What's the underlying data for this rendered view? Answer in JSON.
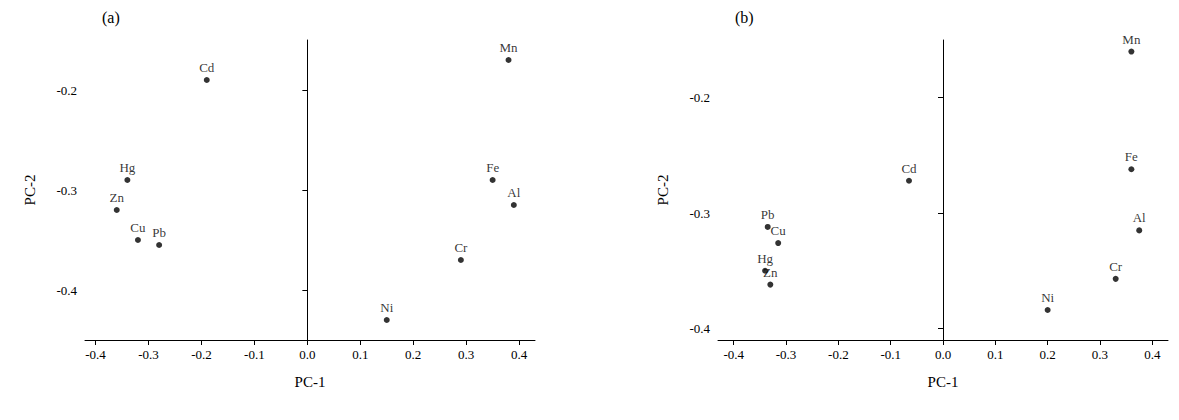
{
  "chart_data": [
    {
      "type": "scatter",
      "title": "(a)",
      "x_label": "PC-1",
      "y_label": "PC-2",
      "labels": [
        "Cd",
        "Mn",
        "Hg",
        "Zn",
        "Cu",
        "Pb",
        "Fe",
        "Al",
        "Cr",
        "Ni"
      ],
      "x": [
        -0.19,
        0.38,
        -0.34,
        -0.36,
        -0.32,
        -0.28,
        0.35,
        0.39,
        0.29,
        0.15
      ],
      "y": [
        -0.19,
        -0.17,
        -0.29,
        -0.32,
        -0.35,
        -0.355,
        -0.29,
        -0.315,
        -0.37,
        -0.43
      ],
      "color": "#000000",
      "marker": "circle",
      "grid": false,
      "xlim": [
        -0.42,
        0.43
      ],
      "xticks": [
        -0.4,
        -0.3,
        -0.2,
        -0.1,
        {
          "value": 0,
          "label": "0.0"
        },
        0.1,
        0.2,
        0.3,
        0.4
      ],
      "ylim": [
        -0.45,
        -0.15
      ],
      "yticks": [
        -0.4,
        -0.3,
        -0.2
      ]
    },
    {
      "type": "scatter",
      "title": "(b)",
      "x_label": "PC-1",
      "y_label": "PC-2",
      "labels": [
        "Mn",
        "Fe",
        "Al",
        "Cr",
        "Ni",
        "Cd",
        "Pb",
        "Cu",
        "Hg",
        "Zn"
      ],
      "x": [
        0.36,
        0.36,
        0.375,
        0.33,
        0.2,
        -0.065,
        -0.335,
        -0.315,
        -0.34,
        -0.33
      ],
      "y": [
        -0.16,
        -0.262,
        -0.315,
        -0.357,
        -0.384,
        -0.272,
        -0.312,
        -0.326,
        -0.35,
        -0.362
      ],
      "color": "#000000",
      "marker": "circle",
      "grid": false,
      "xlim": [
        -0.43,
        0.43
      ],
      "xticks": [
        -0.4,
        -0.3,
        -0.2,
        -0.1,
        {
          "value": 0,
          "label": "0.0"
        },
        0.1,
        0.2,
        0.3,
        0.4
      ],
      "ylim": [
        -0.41,
        -0.15
      ],
      "yticks": [
        -0.4,
        -0.3,
        -0.2
      ]
    }
  ]
}
